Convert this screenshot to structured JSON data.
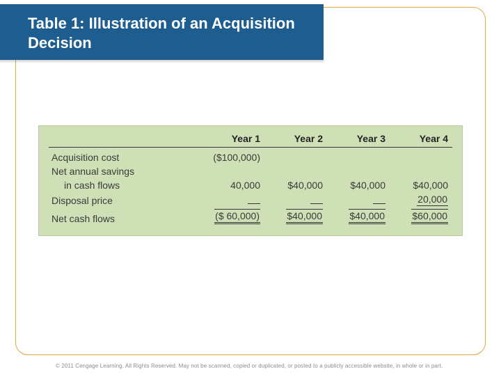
{
  "slide": {
    "title": "Table 1: Illustration of an Acquisition Decision",
    "colors": {
      "banner_bg": "#1d5d90",
      "banner_text": "#ffffff",
      "frame_border": "#e9a541",
      "table_bg": "#cfe0b6",
      "table_border": "#b9c9a2",
      "rule": "#333333",
      "text": "#3a3a3a"
    }
  },
  "table": {
    "type": "table",
    "columns": [
      "Year 1",
      "Year 2",
      "Year 3",
      "Year 4"
    ],
    "row_labels": {
      "acq": "Acquisition cost",
      "savings_a": "Net annual savings",
      "savings_b": "in cash flows",
      "disposal": "Disposal price",
      "net": "Net cash flows"
    },
    "rows": {
      "acq": [
        "($100,000)",
        "",
        "",
        ""
      ],
      "savings": [
        "40,000",
        "$40,000",
        "$40,000",
        "$40,000"
      ],
      "disposal": [
        "",
        "",
        "",
        "20,000"
      ],
      "net": [
        "($  60,000)",
        "$40,000",
        "$40,000",
        "$60,000"
      ]
    }
  },
  "footer": {
    "text": "© 2011 Cengage Learning. All Rights Reserved. May not be scanned, copied or duplicated, or posted to a publicly accessible website, in whole or in part."
  }
}
